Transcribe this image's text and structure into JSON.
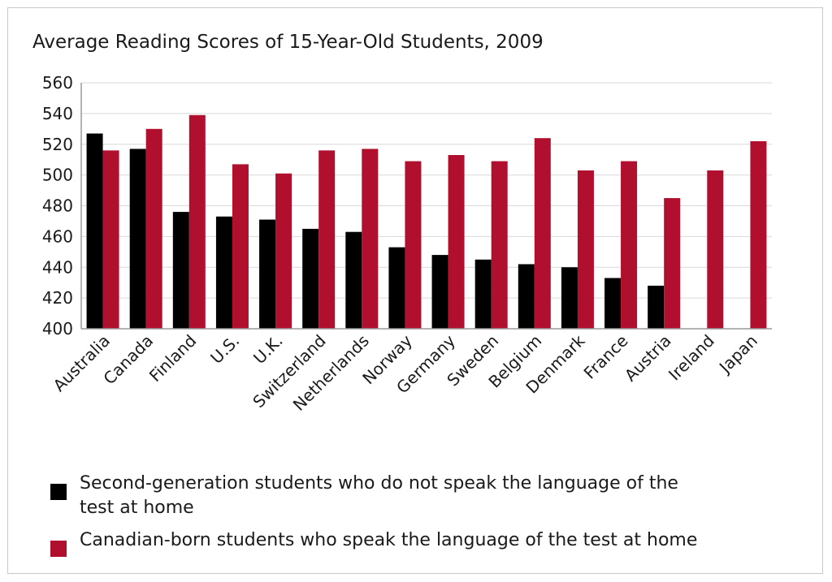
{
  "chart_data": {
    "type": "bar",
    "title": "Average Reading Scores of 15-Year-Old Students, 2009",
    "categories": [
      "Australia",
      "Canada",
      "Finland",
      "U.S.",
      "U.K.",
      "Switzerland",
      "Netherlands",
      "Norway",
      "Germany",
      "Sweden",
      "Belgium",
      "Denmark",
      "France",
      "Austria",
      "Ireland",
      "Japan"
    ],
    "series": [
      {
        "name": "Second-generation students who do not speak the language of the test at home",
        "color": "#000000",
        "values": [
          527,
          517,
          476,
          473,
          471,
          465,
          463,
          453,
          448,
          445,
          442,
          440,
          433,
          428,
          null,
          null
        ]
      },
      {
        "name": "Canadian-born students who speak the language of the test at home",
        "color": "#b0102e",
        "values": [
          516,
          530,
          539,
          507,
          501,
          516,
          517,
          509,
          513,
          509,
          524,
          503,
          509,
          485,
          503,
          522
        ]
      }
    ],
    "yticks": [
      400,
      420,
      440,
      460,
      480,
      500,
      520,
      540,
      560
    ],
    "ylim": [
      400,
      560
    ],
    "grid": true,
    "legend_position": "bottom",
    "legend_lines": [
      [
        "Second-generation students who do not speak the language of the",
        "test at home"
      ],
      [
        "Canadian-born students who speak the language of the test at home"
      ]
    ]
  }
}
